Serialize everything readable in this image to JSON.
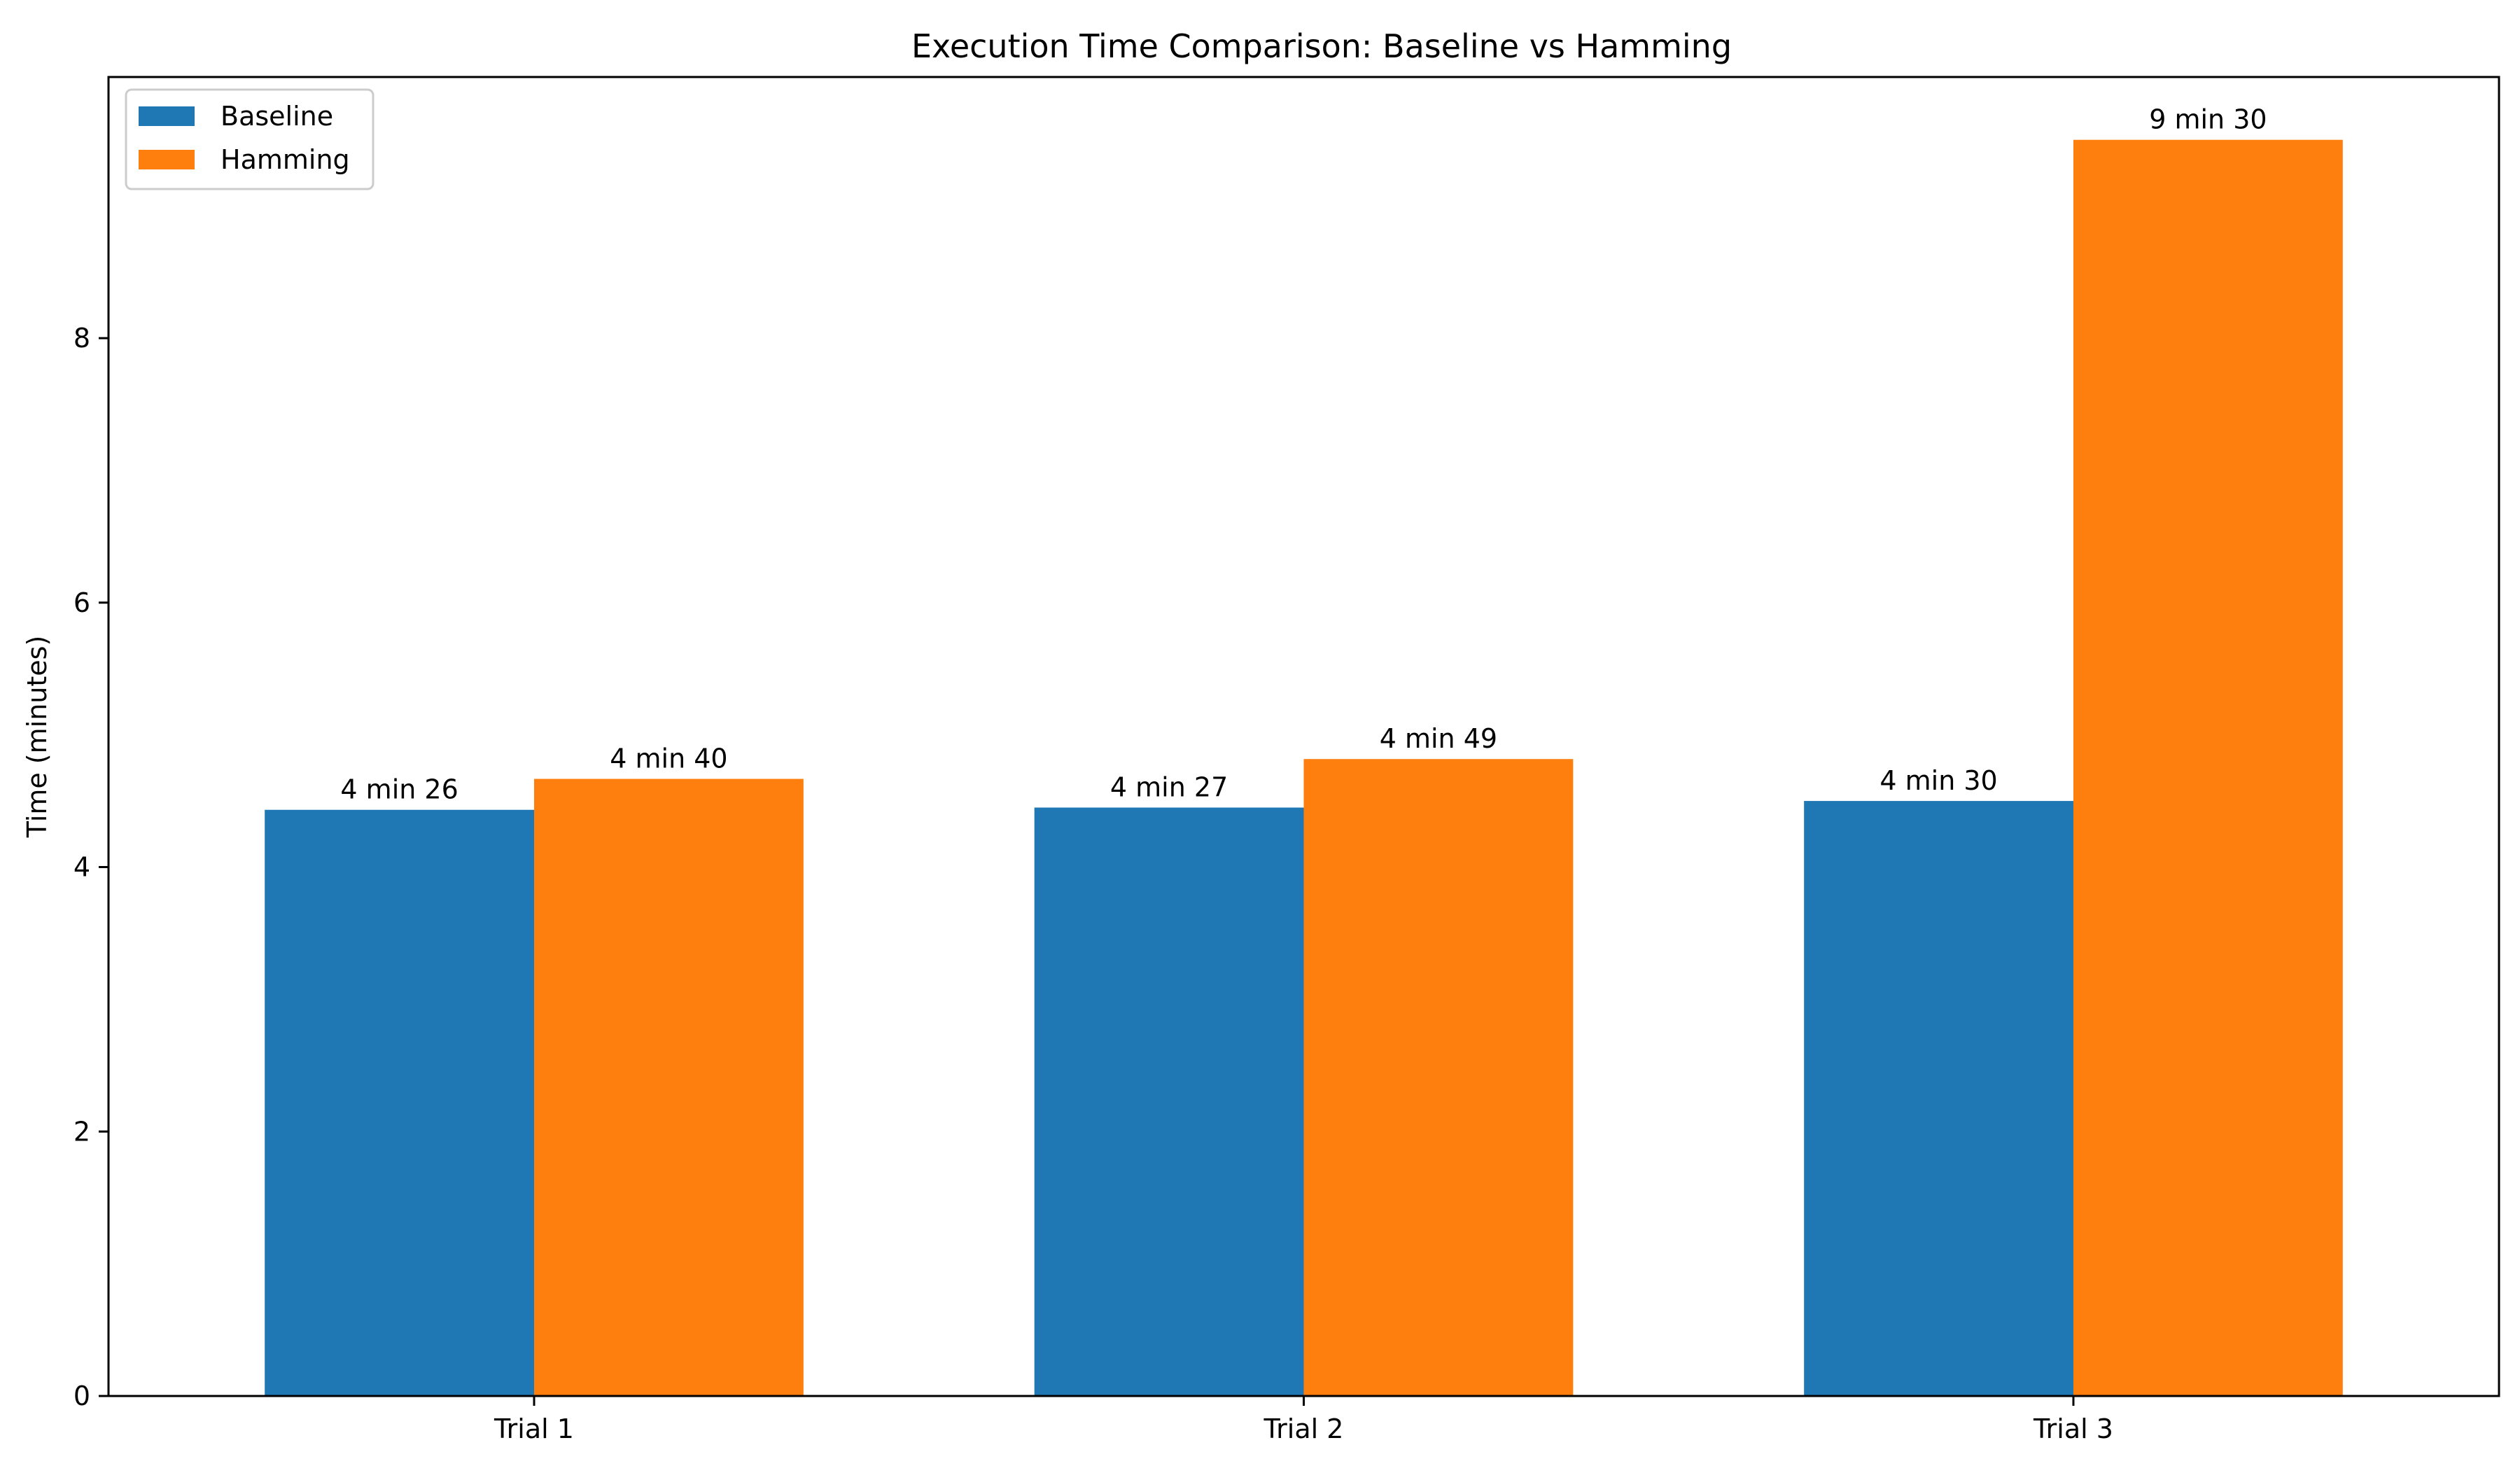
{
  "chart_data": {
    "type": "bar",
    "title": "Execution Time Comparison: Baseline vs Hamming",
    "xlabel": "",
    "ylabel": "Time (minutes)",
    "categories": [
      "Trial 1",
      "Trial 2",
      "Trial 3"
    ],
    "series": [
      {
        "name": "Baseline",
        "color": "#1f77b4",
        "values": [
          4.433,
          4.45,
          4.5
        ],
        "labels": [
          "4 min 26",
          "4 min 27",
          "4 min 30"
        ]
      },
      {
        "name": "Hamming",
        "color": "#ff7f0e",
        "values": [
          4.667,
          4.817,
          9.5
        ],
        "labels": [
          "4 min 40",
          "4 min 49",
          "9 min 30"
        ]
      }
    ],
    "ylim": [
      0,
      9.975
    ],
    "yticks": [
      0,
      2,
      4,
      6,
      8
    ],
    "grid": false,
    "legend_position": "top-left"
  }
}
